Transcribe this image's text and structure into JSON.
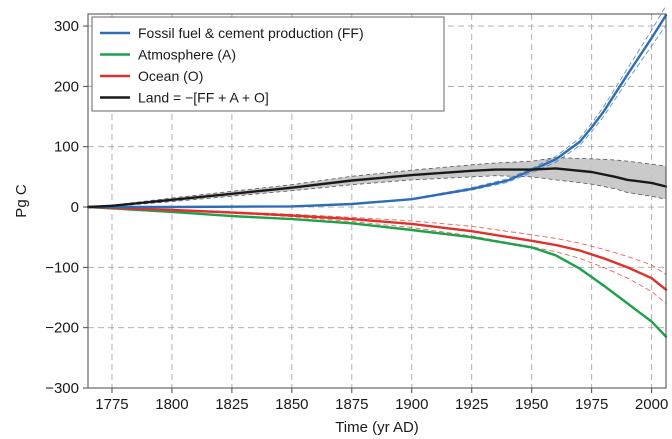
{
  "chart_data": {
    "type": "line",
    "xlabel": "Time (yr AD)",
    "ylabel": "Pg C",
    "xlim": [
      1765,
      2006
    ],
    "ylim": [
      -300,
      320
    ],
    "xticks": [
      1775,
      1800,
      1825,
      1850,
      1875,
      1900,
      1925,
      1950,
      1975,
      2000
    ],
    "yticks": [
      300,
      200,
      100,
      0,
      -100,
      -200,
      -300
    ],
    "xtick_labels": [
      "1775",
      "1800",
      "1825",
      "1850",
      "1875",
      "1900",
      "1925",
      "1950",
      "1975",
      "2000"
    ],
    "ytick_labels": [
      "300",
      "200",
      "100",
      "0",
      "−100",
      "−200",
      "−300"
    ],
    "grid": true,
    "legend_position": "top-left",
    "series": [
      {
        "name": "Fossil fuel & cement production (FF)",
        "color": "#2e6db5",
        "x": [
          1765,
          1800,
          1850,
          1875,
          1900,
          1925,
          1940,
          1950,
          1960,
          1970,
          1975,
          1980,
          1990,
          2000,
          2006
        ],
        "y": [
          0,
          0,
          1,
          5,
          13,
          30,
          44,
          61,
          79,
          108,
          132,
          158,
          220,
          280,
          318
        ],
        "lower": [
          0,
          0,
          1,
          5,
          12,
          28,
          41,
          57,
          74,
          102,
          125,
          150,
          210,
          267,
          302
        ],
        "upper": [
          0,
          0,
          1,
          6,
          14,
          32,
          47,
          64,
          84,
          114,
          139,
          166,
          230,
          293,
          334
        ]
      },
      {
        "name": "Atmosphere (A)",
        "color": "#1fa04a",
        "x": [
          1765,
          1800,
          1825,
          1850,
          1875,
          1900,
          1925,
          1950,
          1960,
          1970,
          1980,
          1990,
          2000,
          2006
        ],
        "y": [
          0,
          -8,
          -15,
          -20,
          -27,
          -38,
          -50,
          -67,
          -80,
          -102,
          -130,
          -160,
          -190,
          -215
        ]
      },
      {
        "name": "Ocean (O)",
        "color": "#e0302a",
        "x": [
          1765,
          1800,
          1825,
          1850,
          1875,
          1900,
          1925,
          1950,
          1960,
          1970,
          1980,
          1990,
          2000,
          2006
        ],
        "y": [
          0,
          -5,
          -9,
          -14,
          -20,
          -28,
          -40,
          -56,
          -63,
          -72,
          -85,
          -100,
          -118,
          -137
        ],
        "lower": [
          0,
          -5,
          -10,
          -16,
          -24,
          -34,
          -48,
          -66,
          -74,
          -85,
          -100,
          -118,
          -140,
          -160
        ],
        "upper": [
          0,
          -4,
          -8,
          -12,
          -17,
          -23,
          -32,
          -46,
          -52,
          -60,
          -70,
          -82,
          -96,
          -112
        ]
      },
      {
        "name": "Land = −[FF + A + O]",
        "color": "#1a1a1a",
        "x": [
          1765,
          1775,
          1800,
          1825,
          1850,
          1875,
          1900,
          1925,
          1935,
          1950,
          1960,
          1975,
          1985,
          1990,
          2000,
          2006
        ],
        "y": [
          0,
          2,
          12,
          22,
          32,
          44,
          53,
          60,
          62,
          62,
          64,
          58,
          50,
          45,
          40,
          34
        ],
        "lower": [
          0,
          1,
          9,
          18,
          27,
          37,
          45,
          50,
          52,
          50,
          45,
          38,
          30,
          24,
          18,
          13
        ],
        "upper": [
          0,
          3,
          15,
          26,
          37,
          51,
          61,
          70,
          73,
          76,
          82,
          80,
          78,
          76,
          71,
          68
        ]
      }
    ]
  }
}
